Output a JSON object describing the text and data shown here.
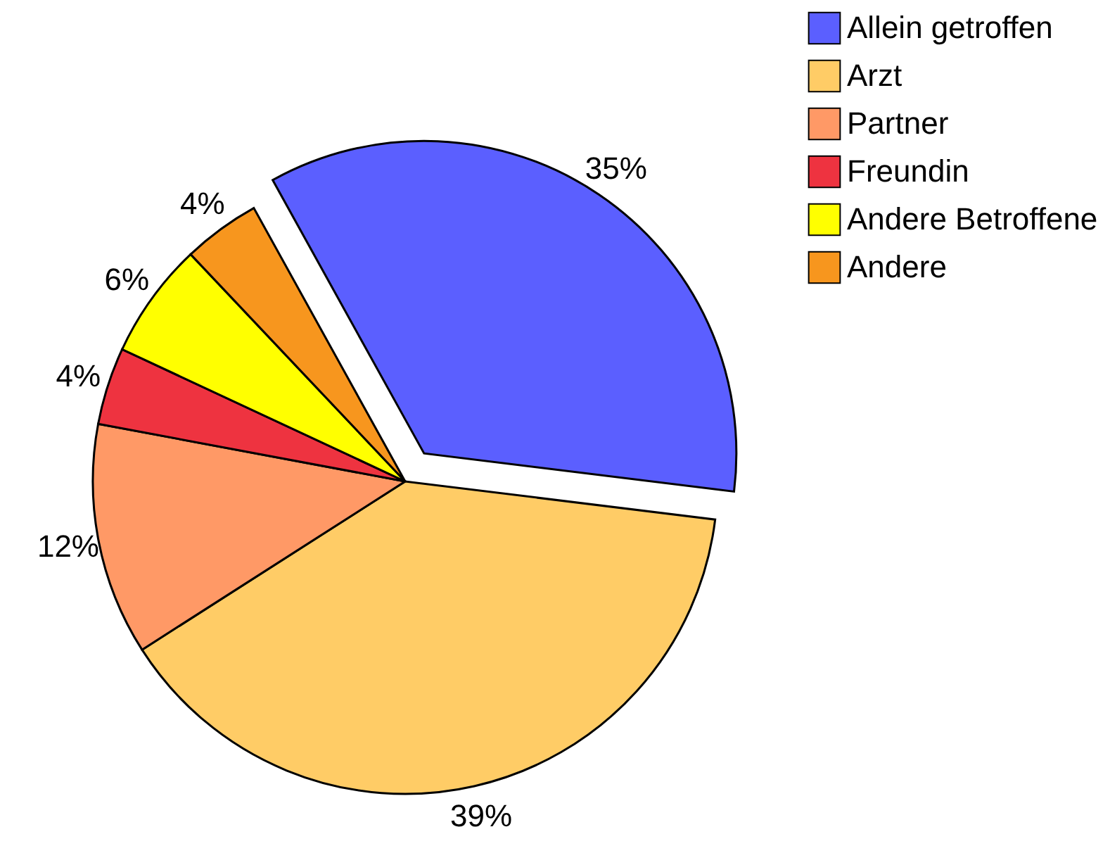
{
  "chart_data": {
    "type": "pie",
    "categories": [
      "Allein getroffen",
      "Arzt",
      "Partner",
      "Freundin",
      "Andere Betroffene",
      "Andere"
    ],
    "values": [
      35,
      39,
      12,
      4,
      6,
      4
    ],
    "colors": [
      "#5b5fff",
      "#ffcc66",
      "#ff9966",
      "#ee3340",
      "#ffff00",
      "#f7961e"
    ],
    "value_labels": [
      "35%",
      "39%",
      "12%",
      "4%",
      "6%",
      "4%"
    ],
    "legend": "top right"
  }
}
